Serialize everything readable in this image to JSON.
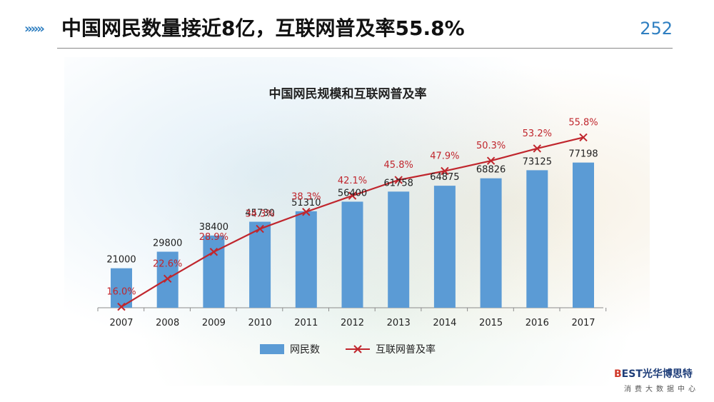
{
  "header": {
    "chevrons": "»»»",
    "title": "中国网民数量接近8亿，互联网普及率55.8%",
    "page_number": "252"
  },
  "brand": {
    "logo_main": "EST光华博思特",
    "logo_mark": "B",
    "logo_sub": "消费大数据中心"
  },
  "chart_data": {
    "type": "bar",
    "title": "中国网民规模和互联网普及率",
    "categories": [
      "2007",
      "2008",
      "2009",
      "2010",
      "2011",
      "2012",
      "2013",
      "2014",
      "2015",
      "2016",
      "2017"
    ],
    "series": [
      {
        "name": "网民数",
        "type": "bar",
        "color": "#5b9bd5",
        "values": [
          21000,
          29800,
          38400,
          45730,
          51310,
          56400,
          61758,
          64875,
          68826,
          73125,
          77198
        ]
      },
      {
        "name": "互联网普及率",
        "type": "line",
        "color": "#c0262d",
        "labels": [
          "16.0%",
          "22.6%",
          "28.9%",
          "34.3%",
          "38.3%",
          "42.1%",
          "45.8%",
          "47.9%",
          "50.3%",
          "53.2%",
          "55.8%"
        ],
        "values": [
          16.0,
          22.6,
          28.9,
          34.3,
          38.3,
          42.1,
          45.8,
          47.9,
          50.3,
          53.2,
          55.8
        ]
      }
    ],
    "legend_position": "bottom",
    "grid": false
  }
}
